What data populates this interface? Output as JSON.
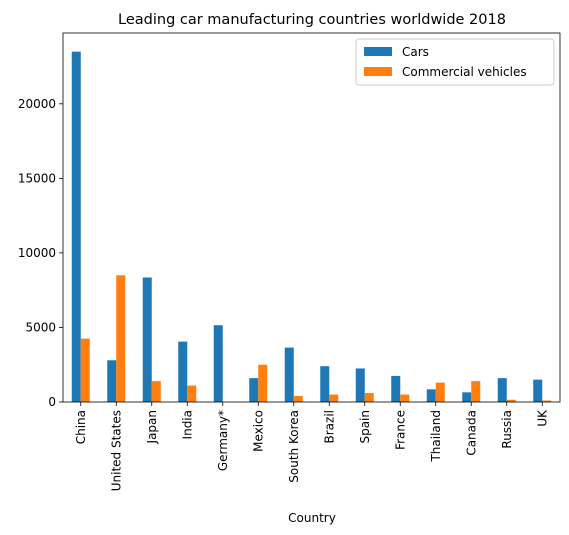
{
  "chart_data": {
    "type": "bar",
    "title": "Leading car manufacturing countries worldwide 2018",
    "xlabel": "Country",
    "ylabel": "",
    "categories": [
      "China",
      "United States",
      "Japan",
      "India",
      "Germany*",
      "Mexico",
      "South Korea",
      "Brazil",
      "Spain",
      "France",
      "Thailand",
      "Canada",
      "Russia",
      "UK"
    ],
    "series": [
      {
        "name": "Cars",
        "color": "#1f77b4",
        "values": [
          23500,
          2800,
          8350,
          4050,
          5150,
          1600,
          3650,
          2400,
          2250,
          1750,
          850,
          650,
          1600,
          1500
        ]
      },
      {
        "name": "Commercial vehicles",
        "color": "#ff7f0e",
        "values": [
          4250,
          8500,
          1400,
          1100,
          0,
          2500,
          400,
          500,
          600,
          500,
          1300,
          1400,
          150,
          100
        ]
      }
    ],
    "ylim": [
      0,
      24750
    ],
    "yticks": [
      0,
      5000,
      10000,
      15000,
      20000
    ],
    "grid": false,
    "legend_position": "top-right"
  }
}
